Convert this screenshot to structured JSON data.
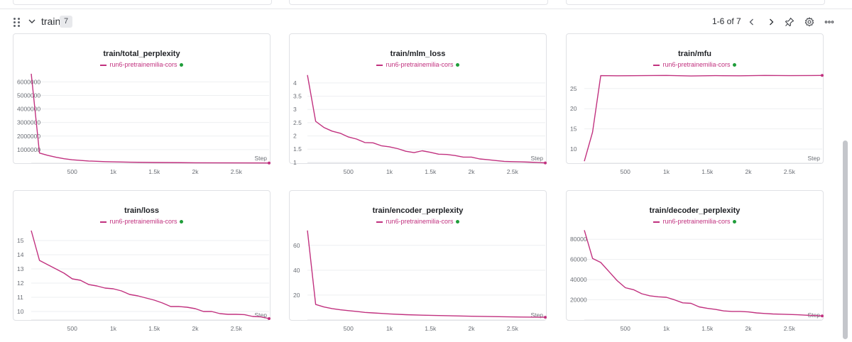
{
  "section": {
    "title": "train",
    "count": "7",
    "pager": "1-6 of 7"
  },
  "icons": {
    "drag": "drag-handle-icon",
    "collapse": "chevron-down-icon",
    "prev": "chevron-left-icon",
    "next": "chevron-right-icon",
    "pin": "pin-icon",
    "settings": "gear-icon",
    "more": "more-horizontal-icon"
  },
  "colors": {
    "series": "#c1317f",
    "status_dot": "#1f9d3a"
  },
  "chart_data": [
    {
      "type": "line",
      "title": "train/total_perplexity",
      "xlabel": "Step",
      "legend": [
        "run6-pretrainemilia-cors"
      ],
      "xlim": [
        0,
        2900
      ],
      "ylim": [
        0,
        6700000
      ],
      "x_ticks": [
        500,
        1000,
        1500,
        2000,
        2500
      ],
      "x_tick_labels": [
        "500",
        "1k",
        "1.5k",
        "2k",
        "2.5k"
      ],
      "y_ticks": [
        1000000,
        2000000,
        3000000,
        4000000,
        5000000,
        6000000
      ],
      "y_tick_labels": [
        "1000000",
        "2000000",
        "3000000",
        "4000000",
        "5000000",
        "6000000"
      ],
      "series": [
        {
          "name": "run6-pretrainemilia-cors",
          "x": [
            0,
            100,
            200,
            300,
            400,
            500,
            700,
            900,
            1200,
            1500,
            2000,
            2500,
            2900
          ],
          "y": [
            6600000,
            750000,
            580000,
            440000,
            330000,
            250000,
            160000,
            115000,
            75000,
            50000,
            30000,
            20000,
            15000
          ]
        }
      ]
    },
    {
      "type": "line",
      "title": "train/mlm_loss",
      "xlabel": "Step",
      "legend": [
        "run6-pretrainemilia-cors"
      ],
      "xlim": [
        0,
        2900
      ],
      "ylim": [
        0.97,
        4.4
      ],
      "x_ticks": [
        500,
        1000,
        1500,
        2000,
        2500
      ],
      "x_tick_labels": [
        "500",
        "1k",
        "1.5k",
        "2k",
        "2.5k"
      ],
      "y_ticks": [
        1,
        1.5,
        2,
        2.5,
        3,
        3.5,
        4
      ],
      "y_tick_labels": [
        "1",
        "1.5",
        "2",
        "2.5",
        "3",
        "3.5",
        "4"
      ],
      "series": [
        {
          "name": "run6-pretrainemilia-cors",
          "x": [
            0,
            100,
            200,
            300,
            400,
            500,
            600,
            700,
            800,
            900,
            1000,
            1100,
            1200,
            1300,
            1400,
            1500,
            1600,
            1700,
            1800,
            1900,
            2000,
            2100,
            2200,
            2300,
            2400,
            2500,
            2600,
            2700,
            2800,
            2900
          ],
          "y": [
            4.3,
            2.55,
            2.32,
            2.18,
            2.1,
            1.96,
            1.88,
            1.75,
            1.74,
            1.63,
            1.59,
            1.52,
            1.42,
            1.37,
            1.44,
            1.38,
            1.31,
            1.3,
            1.26,
            1.2,
            1.2,
            1.13,
            1.1,
            1.07,
            1.04,
            1.03,
            1.02,
            1.01,
            1.0,
            0.98
          ]
        }
      ]
    },
    {
      "type": "line",
      "title": "train/mfu",
      "xlabel": "Step",
      "legend": [
        "run6-pretrainemilia-cors"
      ],
      "xlim": [
        0,
        2900
      ],
      "ylim": [
        6.5,
        29
      ],
      "x_ticks": [
        500,
        1000,
        1500,
        2000,
        2500
      ],
      "x_tick_labels": [
        "500",
        "1k",
        "1.5k",
        "2k",
        "2.5k"
      ],
      "y_ticks": [
        10,
        15,
        20,
        25
      ],
      "y_tick_labels": [
        "10",
        "15",
        "20",
        "25"
      ],
      "series": [
        {
          "name": "run6-pretrainemilia-cors",
          "x": [
            0,
            100,
            200,
            400,
            700,
            1000,
            1300,
            1600,
            1900,
            2200,
            2500,
            2900
          ],
          "y": [
            7,
            14.2,
            28.2,
            28.15,
            28.2,
            28.25,
            28.1,
            28.2,
            28.15,
            28.25,
            28.2,
            28.25
          ]
        }
      ]
    },
    {
      "type": "line",
      "title": "train/loss",
      "xlabel": "Step",
      "legend": [
        "run6-pretrainemilia-cors"
      ],
      "xlim": [
        0,
        2900
      ],
      "ylim": [
        9.4,
        15.8
      ],
      "x_ticks": [
        500,
        1000,
        1500,
        2000,
        2500
      ],
      "x_tick_labels": [
        "500",
        "1k",
        "1.5k",
        "2k",
        "2.5k"
      ],
      "y_ticks": [
        10,
        11,
        12,
        13,
        14,
        15
      ],
      "y_tick_labels": [
        "10",
        "11",
        "12",
        "13",
        "14",
        "15"
      ],
      "series": [
        {
          "name": "run6-pretrainemilia-cors",
          "x": [
            0,
            100,
            200,
            300,
            400,
            500,
            600,
            700,
            800,
            900,
            1000,
            1100,
            1200,
            1300,
            1400,
            1500,
            1600,
            1700,
            1800,
            1900,
            2000,
            2100,
            2200,
            2300,
            2400,
            2500,
            2600,
            2700,
            2800,
            2900
          ],
          "y": [
            15.7,
            13.6,
            13.3,
            13.0,
            12.7,
            12.3,
            12.2,
            11.9,
            11.8,
            11.65,
            11.6,
            11.45,
            11.2,
            11.1,
            10.95,
            10.8,
            10.6,
            10.35,
            10.35,
            10.3,
            10.2,
            10.0,
            10.0,
            9.85,
            9.8,
            9.8,
            9.78,
            9.65,
            9.62,
            9.5
          ]
        }
      ]
    },
    {
      "type": "line",
      "title": "train/encoder_perplexity",
      "xlabel": "Step",
      "legend": [
        "run6-pretrainemilia-cors"
      ],
      "xlim": [
        0,
        2900
      ],
      "ylim": [
        0,
        73
      ],
      "x_ticks": [
        500,
        1000,
        1500,
        2000,
        2500
      ],
      "x_tick_labels": [
        "500",
        "1k",
        "1.5k",
        "2k",
        "2.5k"
      ],
      "y_ticks": [
        20,
        40,
        60
      ],
      "y_tick_labels": [
        "20",
        "40",
        "60"
      ],
      "series": [
        {
          "name": "run6-pretrainemilia-cors",
          "x": [
            0,
            100,
            200,
            300,
            400,
            500,
            600,
            700,
            800,
            900,
            1000,
            1200,
            1400,
            1600,
            1800,
            2000,
            2200,
            2400,
            2600,
            2900
          ],
          "y": [
            72,
            12.5,
            10.5,
            9.2,
            8.2,
            7.5,
            6.9,
            6.1,
            5.7,
            5.3,
            4.9,
            4.3,
            3.9,
            3.6,
            3.3,
            3.0,
            2.8,
            2.6,
            2.4,
            2.2
          ]
        }
      ]
    },
    {
      "type": "line",
      "title": "train/decoder_perplexity",
      "xlabel": "Step",
      "legend": [
        "run6-pretrainemilia-cors"
      ],
      "xlim": [
        0,
        2900
      ],
      "ylim": [
        0,
        90000
      ],
      "x_ticks": [
        500,
        1000,
        1500,
        2000,
        2500
      ],
      "x_tick_labels": [
        "500",
        "1k",
        "1.5k",
        "2k",
        "2.5k"
      ],
      "y_ticks": [
        20000,
        40000,
        60000,
        80000
      ],
      "y_tick_labels": [
        "20000",
        "40000",
        "60000",
        "80000"
      ],
      "series": [
        {
          "name": "run6-pretrainemilia-cors",
          "x": [
            0,
            100,
            200,
            300,
            400,
            500,
            600,
            700,
            800,
            900,
            1000,
            1100,
            1200,
            1300,
            1400,
            1500,
            1600,
            1700,
            1800,
            1900,
            2000,
            2100,
            2200,
            2300,
            2400,
            2500,
            2600,
            2700,
            2800,
            2900
          ],
          "y": [
            89000,
            61000,
            57000,
            48000,
            39000,
            32000,
            30000,
            26000,
            24000,
            23000,
            22500,
            20000,
            17000,
            16500,
            13000,
            11500,
            10500,
            9000,
            8500,
            8500,
            8000,
            7000,
            6500,
            6000,
            5800,
            5500,
            5200,
            4800,
            4500,
            4000
          ]
        }
      ]
    }
  ]
}
